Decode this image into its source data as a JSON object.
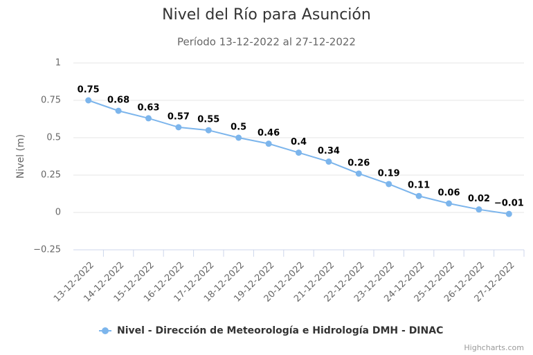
{
  "chart_data": {
    "type": "line",
    "title": "Nivel del Río para Asunción",
    "subtitle": "Período 13-12-2022 al 27-12-2022",
    "y_label": "Nivel (m)",
    "credits": "Highcharts.com",
    "categories": [
      "13-12-2022",
      "14-12-2022",
      "15-12-2022",
      "16-12-2022",
      "17-12-2022",
      "18-12-2022",
      "19-12-2022",
      "20-12-2022",
      "21-12-2022",
      "22-12-2022",
      "23-12-2022",
      "24-12-2022",
      "25-12-2022",
      "26-12-2022",
      "27-12-2022"
    ],
    "series": [
      {
        "name": "Nivel - Dirección de Meteorología e Hidrología DMH - DINAC",
        "color": "#7cb5ec",
        "values": [
          0.75,
          0.68,
          0.63,
          0.57,
          0.55,
          0.5,
          0.46,
          0.4,
          0.34,
          0.26,
          0.19,
          0.11,
          0.06,
          0.02,
          -0.01
        ],
        "value_labels": [
          "0.75",
          "0.68",
          "0.63",
          "0.57",
          "0.55",
          "0.5",
          "0.46",
          "0.4",
          "0.34",
          "0.26",
          "0.19",
          "0.11",
          "0.06",
          "0.02",
          "−0.01"
        ]
      }
    ],
    "ylim": [
      -0.25,
      1
    ],
    "yticks": [
      {
        "value": -0.25,
        "label": "−0.25"
      },
      0,
      0.25,
      0.5,
      0.75,
      1
    ],
    "grid": true
  }
}
